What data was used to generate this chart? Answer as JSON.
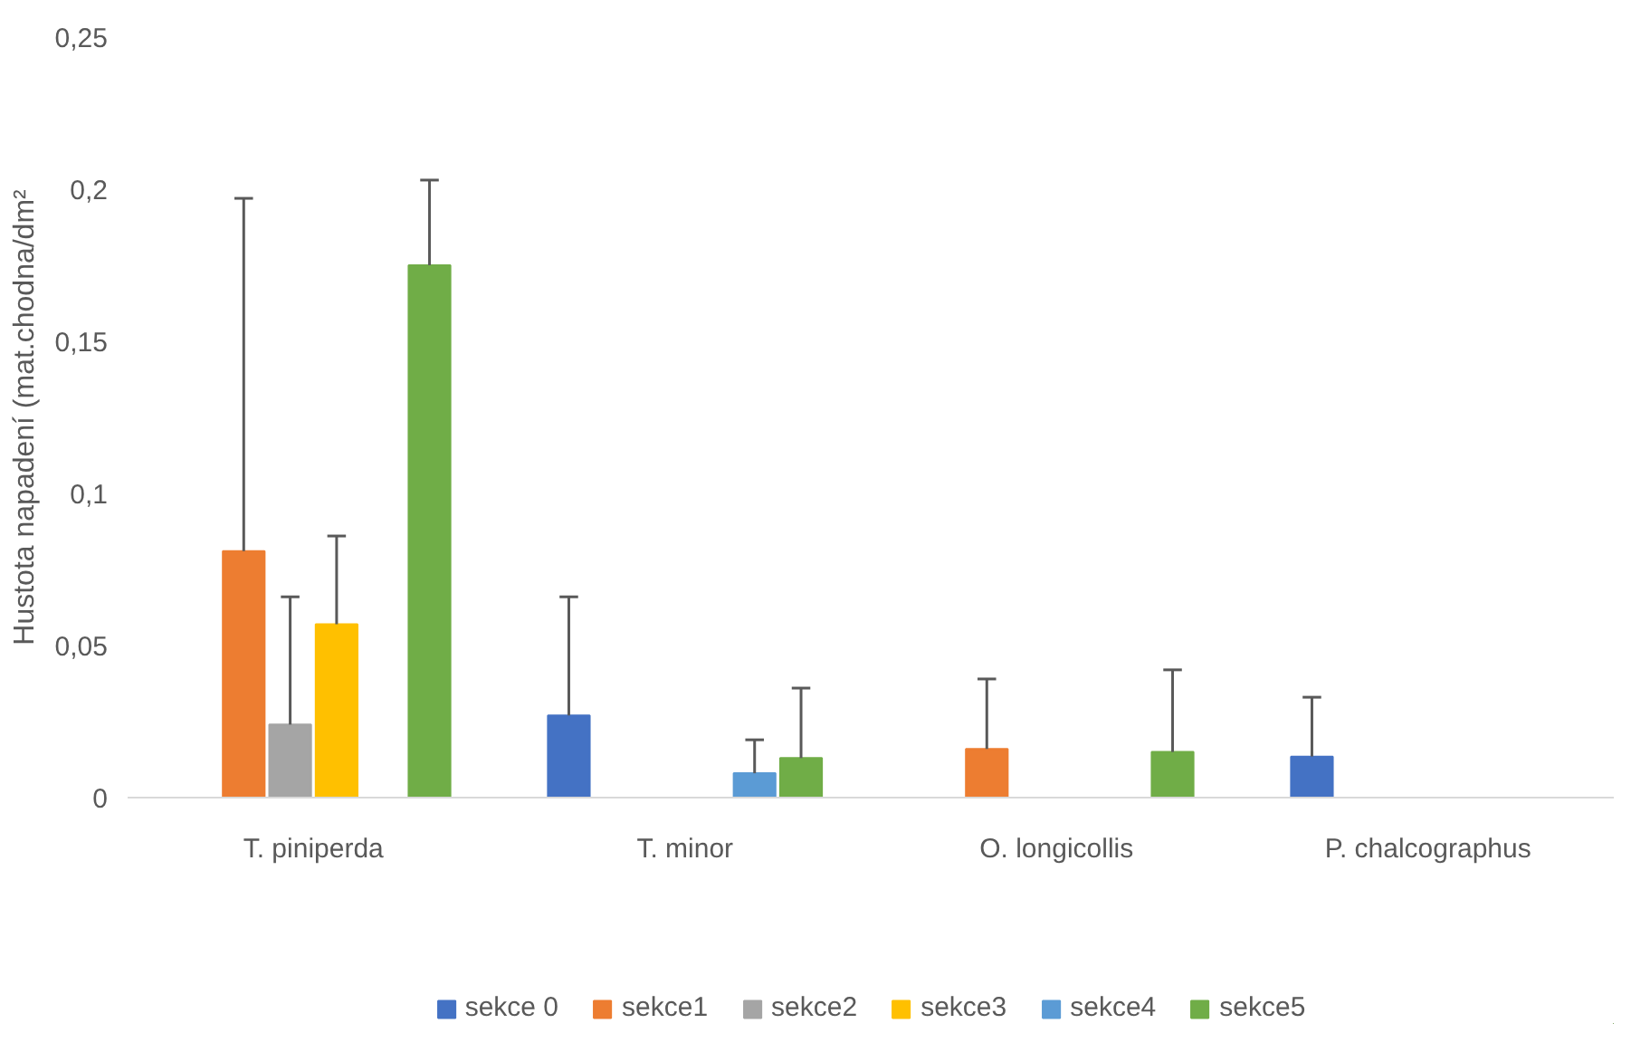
{
  "chart_data": {
    "type": "bar",
    "ylabel": "Hustota napadení (mat.chodna/dm²",
    "categories": [
      "T. piniperda",
      "T. minor",
      "O. longicollis",
      "P. chalcographus"
    ],
    "ylim": [
      0,
      0.25
    ],
    "yticks": [
      0,
      {
        "value": 0.05,
        "label": "0,05"
      },
      {
        "value": 0.1,
        "label": "0,1"
      },
      {
        "value": 0.15,
        "label": "0,15"
      },
      {
        "value": 0.2,
        "label": "0,2"
      },
      {
        "value": 0.25,
        "label": "0,25"
      }
    ],
    "grid": false,
    "legend": "bottom",
    "series": [
      {
        "name": "sekce 0",
        "color": "#4472c4",
        "values": [
          0,
          0.027,
          0,
          0.0135
        ],
        "errors": [
          null,
          [
            0.027,
            0.066
          ],
          null,
          [
            0.0135,
            0.033
          ]
        ]
      },
      {
        "name": "sekce1",
        "color": "#ed7d31",
        "values": [
          0.081,
          0,
          0.016,
          0
        ],
        "errors": [
          [
            0.081,
            0.197
          ],
          null,
          [
            0.016,
            0.039
          ],
          null
        ]
      },
      {
        "name": "sekce2",
        "color": "#a5a5a5",
        "values": [
          0.024,
          0,
          0,
          0
        ],
        "errors": [
          [
            0.024,
            0.066
          ],
          null,
          null,
          null
        ]
      },
      {
        "name": "sekce3",
        "color": "#ffc000",
        "values": [
          0.057,
          0,
          0,
          0
        ],
        "errors": [
          [
            0.057,
            0.086
          ],
          null,
          null,
          null
        ]
      },
      {
        "name": "sekce4",
        "color": "#5b9bd5",
        "values": [
          0,
          0.008,
          0,
          0
        ],
        "errors": [
          null,
          [
            0.008,
            0.019
          ],
          null,
          null
        ]
      },
      {
        "name": "sekce5",
        "color": "#70ad47",
        "values": [
          0.175,
          0.013,
          0.015,
          0
        ],
        "errors": [
          [
            0.175,
            0.203
          ],
          [
            0.013,
            0.036
          ],
          [
            0.015,
            0.042
          ],
          null
        ]
      }
    ]
  }
}
